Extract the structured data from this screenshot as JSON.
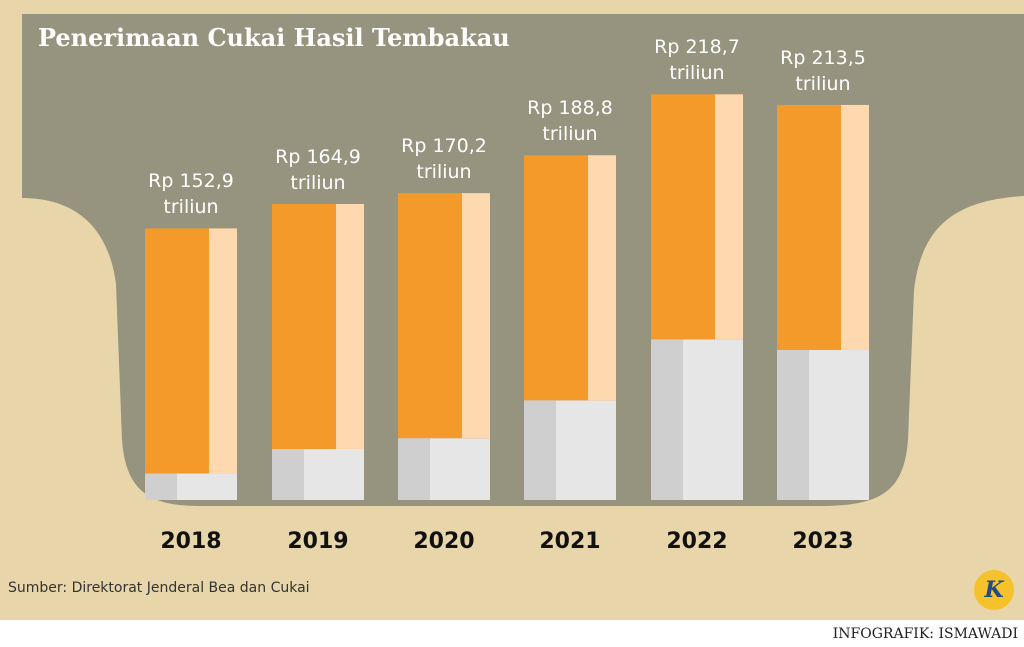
{
  "chart_data": {
    "type": "bar",
    "title": "Penerimaan Cukai Hasil Tembakau",
    "categories": [
      "2018",
      "2019",
      "2020",
      "2021",
      "2022",
      "2023"
    ],
    "values": [
      152.9,
      164.9,
      170.2,
      188.8,
      218.7,
      213.5
    ],
    "value_labels": [
      "Rp 152,9 triliun",
      "Rp 164,9 triliun",
      "Rp 170,2 triliun",
      "Rp 188,8 triliun",
      "Rp 218,7 triliun",
      "Rp 213,5 triliun"
    ],
    "color": "#f49a2a",
    "ylim": [
      0,
      265
    ]
  },
  "source": "Sumber: Direktorat Jenderal Bea dan Cukai",
  "credit": "INFOGRAFIK: ISMAWADI",
  "logo": "K"
}
